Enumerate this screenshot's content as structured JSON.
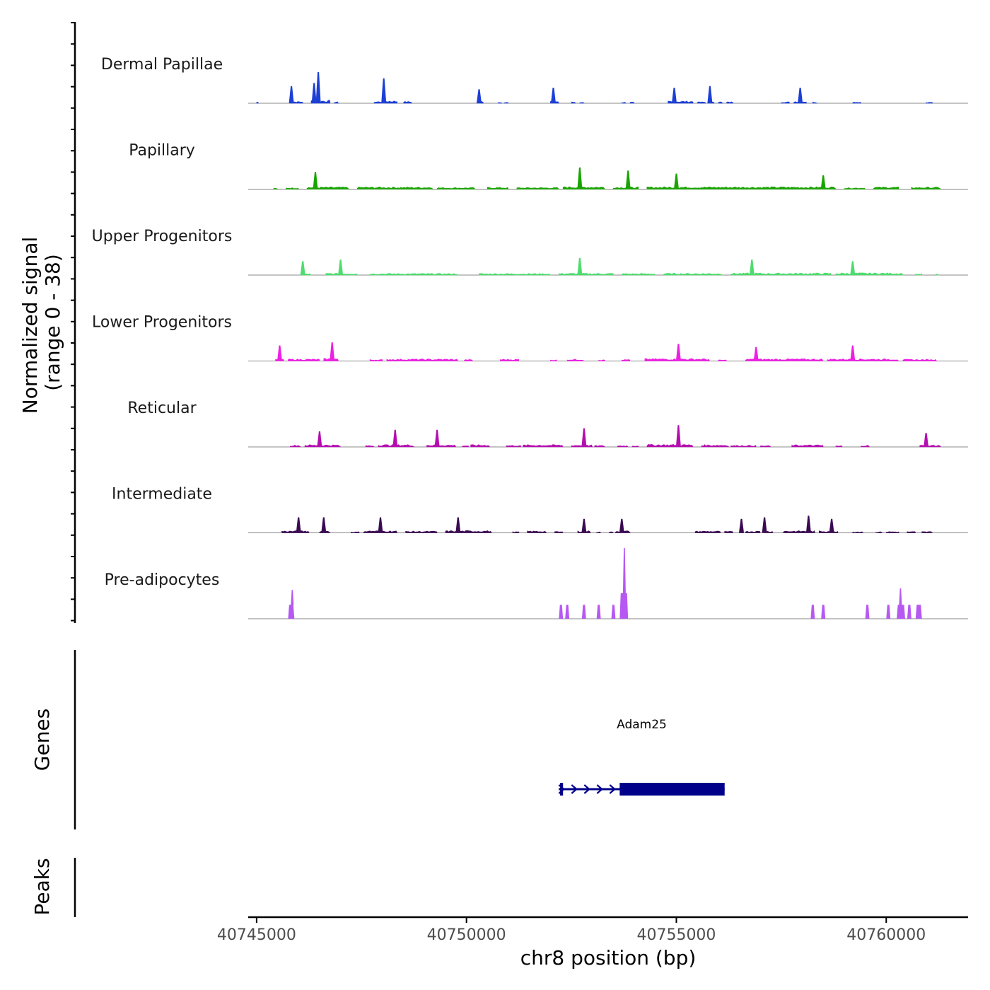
{
  "chart_data": {
    "type": "area",
    "chromosome": "chr8",
    "xlabel": "chr8 position (bp)",
    "xlim": [
      40744800,
      40761950
    ],
    "x_ticks": [
      40745000,
      40750000,
      40755000,
      40760000
    ],
    "x_tick_labels": [
      "40745000",
      "40750000",
      "40755000",
      "40760000"
    ],
    "signal_panel": {
      "ylabel_line1": "Normalized signal",
      "ylabel_line2": "(range 0 - 38)",
      "ylim": [
        0,
        38
      ]
    },
    "genes_panel": {
      "ylabel": "Genes",
      "genes": [
        {
          "name": "Adam25",
          "strand": "+",
          "start": 40752200,
          "end": 40756150,
          "thick_start": 40753650,
          "thick_end": 40756150,
          "exons": [
            [
              40752230,
              40752300
            ]
          ]
        }
      ]
    },
    "peaks_panel": {
      "ylabel": "Peaks",
      "peaks": []
    },
    "series": [
      {
        "name": "Dermal Papillae",
        "color": "#1c3fd6",
        "regions": [
          [
            40745000,
            40745040,
            0.4
          ],
          [
            40745800,
            40746100,
            0.5
          ],
          [
            40746300,
            40746750,
            0.8
          ],
          [
            40746850,
            40746950,
            0.4
          ],
          [
            40747800,
            40748000,
            0.5
          ],
          [
            40748050,
            40748350,
            0.7
          ],
          [
            40748500,
            40748700,
            0.5
          ],
          [
            40750250,
            40750400,
            0.6
          ],
          [
            40750750,
            40750850,
            0.3
          ],
          [
            40750900,
            40751000,
            0.3
          ],
          [
            40752000,
            40752200,
            0.6
          ],
          [
            40752500,
            40752600,
            0.4
          ],
          [
            40752700,
            40752800,
            0.3
          ],
          [
            40753700,
            40753800,
            0.3
          ],
          [
            40753900,
            40754000,
            0.3
          ],
          [
            40754800,
            40755400,
            0.6
          ],
          [
            40755500,
            40755700,
            0.4
          ],
          [
            40755750,
            40755900,
            0.6
          ],
          [
            40756000,
            40756100,
            0.4
          ],
          [
            40756200,
            40756350,
            0.4
          ],
          [
            40757500,
            40757700,
            0.4
          ],
          [
            40757800,
            40758100,
            0.6
          ],
          [
            40758250,
            40758350,
            0.4
          ],
          [
            40759200,
            40759400,
            0.4
          ],
          [
            40760950,
            40761100,
            0.3
          ]
        ],
        "peaks": [
          [
            40745830,
            1.1
          ],
          [
            40746470,
            2.0
          ],
          [
            40746370,
            1.3
          ],
          [
            40748030,
            1.6
          ],
          [
            40750300,
            0.9
          ],
          [
            40752070,
            1.0
          ],
          [
            40754950,
            1.0
          ],
          [
            40755800,
            1.1
          ],
          [
            40757950,
            1.0
          ]
        ]
      },
      {
        "name": "Papillary",
        "color": "#19a400",
        "regions": [
          [
            40745400,
            40745500,
            0.25
          ],
          [
            40745700,
            40746000,
            0.4
          ],
          [
            40746200,
            40747200,
            0.6
          ],
          [
            40747400,
            40749200,
            0.6
          ],
          [
            40749300,
            40750200,
            0.45
          ],
          [
            40750500,
            40751000,
            0.5
          ],
          [
            40751200,
            40752200,
            0.45
          ],
          [
            40752300,
            40753300,
            0.7
          ],
          [
            40753500,
            40754100,
            0.6
          ],
          [
            40754300,
            40758800,
            0.65
          ],
          [
            40759000,
            40759500,
            0.4
          ],
          [
            40759700,
            40760300,
            0.6
          ],
          [
            40760600,
            40761300,
            0.55
          ]
        ],
        "peaks": [
          [
            40746400,
            1.1
          ],
          [
            40752700,
            1.4
          ],
          [
            40753850,
            1.2
          ],
          [
            40755000,
            1.0
          ],
          [
            40758500,
            0.9
          ]
        ]
      },
      {
        "name": "Upper Progenitors",
        "color": "#4fdc6e",
        "regions": [
          [
            40746050,
            40746300,
            0.4
          ],
          [
            40746650,
            40747400,
            0.5
          ],
          [
            40747700,
            40749800,
            0.45
          ],
          [
            40750300,
            40752000,
            0.45
          ],
          [
            40752200,
            40753500,
            0.5
          ],
          [
            40753700,
            40754500,
            0.45
          ],
          [
            40754700,
            40756100,
            0.5
          ],
          [
            40756300,
            40758700,
            0.55
          ],
          [
            40758800,
            40760400,
            0.6
          ],
          [
            40760700,
            40760850,
            0.35
          ],
          [
            40761180,
            40761250,
            0.3
          ]
        ],
        "peaks": [
          [
            40746100,
            0.9
          ],
          [
            40747000,
            1.0
          ],
          [
            40752700,
            1.1
          ],
          [
            40756800,
            1.0
          ],
          [
            40759200,
            0.9
          ]
        ]
      },
      {
        "name": "Lower Progenitors",
        "color": "#ee1fe3",
        "regions": [
          [
            40745450,
            40745650,
            0.5
          ],
          [
            40745750,
            40746500,
            0.55
          ],
          [
            40746600,
            40746950,
            0.7
          ],
          [
            40747700,
            40748000,
            0.4
          ],
          [
            40748100,
            40749800,
            0.55
          ],
          [
            40749950,
            40750150,
            0.4
          ],
          [
            40750800,
            40751250,
            0.5
          ],
          [
            40752000,
            40752150,
            0.35
          ],
          [
            40752400,
            40752800,
            0.5
          ],
          [
            40753150,
            40753300,
            0.35
          ],
          [
            40753700,
            40753900,
            0.4
          ],
          [
            40754250,
            40755800,
            0.65
          ],
          [
            40756000,
            40756200,
            0.3
          ],
          [
            40756650,
            40758500,
            0.6
          ],
          [
            40758600,
            40760300,
            0.6
          ],
          [
            40760400,
            40761200,
            0.45
          ]
        ],
        "peaks": [
          [
            40745550,
            1.0
          ],
          [
            40746800,
            1.2
          ],
          [
            40755050,
            1.1
          ],
          [
            40759200,
            1.0
          ],
          [
            40756900,
            0.9
          ]
        ]
      },
      {
        "name": "Reticular",
        "color": "#b40eb0",
        "regions": [
          [
            40745800,
            40746050,
            0.5
          ],
          [
            40746150,
            40747000,
            0.6
          ],
          [
            40747600,
            40747800,
            0.4
          ],
          [
            40747900,
            40748750,
            0.65
          ],
          [
            40749050,
            40749750,
            0.6
          ],
          [
            40749900,
            40750050,
            0.4
          ],
          [
            40750100,
            40750550,
            0.6
          ],
          [
            40750950,
            40751300,
            0.45
          ],
          [
            40751350,
            40752300,
            0.6
          ],
          [
            40752500,
            40753000,
            0.55
          ],
          [
            40753050,
            40753300,
            0.4
          ],
          [
            40753600,
            40753850,
            0.4
          ],
          [
            40753950,
            40754100,
            0.4
          ],
          [
            40754300,
            40755400,
            0.7
          ],
          [
            40755600,
            40756250,
            0.6
          ],
          [
            40756300,
            40756900,
            0.45
          ],
          [
            40757000,
            40757250,
            0.35
          ],
          [
            40757750,
            40758500,
            0.55
          ],
          [
            40758800,
            40758950,
            0.3
          ],
          [
            40759400,
            40759600,
            0.45
          ],
          [
            40760800,
            40761300,
            0.5
          ]
        ],
        "peaks": [
          [
            40746500,
            1.0
          ],
          [
            40748300,
            1.1
          ],
          [
            40749300,
            1.1
          ],
          [
            40752800,
            1.2
          ],
          [
            40755050,
            1.4
          ],
          [
            40760950,
            0.9
          ]
        ]
      },
      {
        "name": "Intermediate",
        "color": "#3a0a52",
        "regions": [
          [
            40745600,
            40746250,
            0.55
          ],
          [
            40746500,
            40746750,
            0.55
          ],
          [
            40747250,
            40747450,
            0.3
          ],
          [
            40747550,
            40748350,
            0.6
          ],
          [
            40748550,
            40749300,
            0.45
          ],
          [
            40749500,
            40750600,
            0.6
          ],
          [
            40751100,
            40751250,
            0.3
          ],
          [
            40751450,
            40751900,
            0.5
          ],
          [
            40752100,
            40752300,
            0.35
          ],
          [
            40752650,
            40752950,
            0.55
          ],
          [
            40753100,
            40753200,
            0.3
          ],
          [
            40753400,
            40753500,
            0.3
          ],
          [
            40753550,
            40753900,
            0.55
          ],
          [
            40755450,
            40756050,
            0.5
          ],
          [
            40756150,
            40756350,
            0.4
          ],
          [
            40756500,
            40756600,
            0.35
          ],
          [
            40756650,
            40757000,
            0.5
          ],
          [
            40757100,
            40757300,
            0.5
          ],
          [
            40757550,
            40758300,
            0.55
          ],
          [
            40758400,
            40758850,
            0.55
          ],
          [
            40759200,
            40759450,
            0.35
          ],
          [
            40759750,
            40759900,
            0.3
          ],
          [
            40760000,
            40760300,
            0.35
          ],
          [
            40760500,
            40760700,
            0.35
          ],
          [
            40760850,
            40761100,
            0.35
          ]
        ],
        "peaks": [
          [
            40746000,
            1.0
          ],
          [
            40746600,
            1.0
          ],
          [
            40747950,
            1.0
          ],
          [
            40749800,
            1.0
          ],
          [
            40752800,
            0.9
          ],
          [
            40753700,
            0.9
          ],
          [
            40756550,
            0.9
          ],
          [
            40757100,
            1.0
          ],
          [
            40758150,
            1.1
          ],
          [
            40758700,
            0.9
          ]
        ]
      },
      {
        "name": "Pre-adipocytes",
        "color": "#b659f2",
        "regions": [],
        "spikes": [
          [
            40745750,
            40745900,
            3.6,
            40745850,
            7.4
          ],
          [
            40752200,
            40752300,
            3.6
          ],
          [
            40752350,
            40752450,
            3.6
          ],
          [
            40752750,
            40752850,
            3.6
          ],
          [
            40753100,
            40753200,
            3.6
          ],
          [
            40753450,
            40753550,
            3.6
          ],
          [
            40753650,
            40753850,
            6.6,
            40753760,
            18.2
          ],
          [
            40758200,
            40758300,
            3.6
          ],
          [
            40758450,
            40758550,
            3.6
          ],
          [
            40759500,
            40759600,
            3.6
          ],
          [
            40760000,
            40760100,
            3.6
          ],
          [
            40760250,
            40760450,
            3.6,
            40760340,
            7.8
          ],
          [
            40760500,
            40760600,
            3.6
          ],
          [
            40760700,
            40760850,
            3.6
          ]
        ]
      }
    ]
  }
}
